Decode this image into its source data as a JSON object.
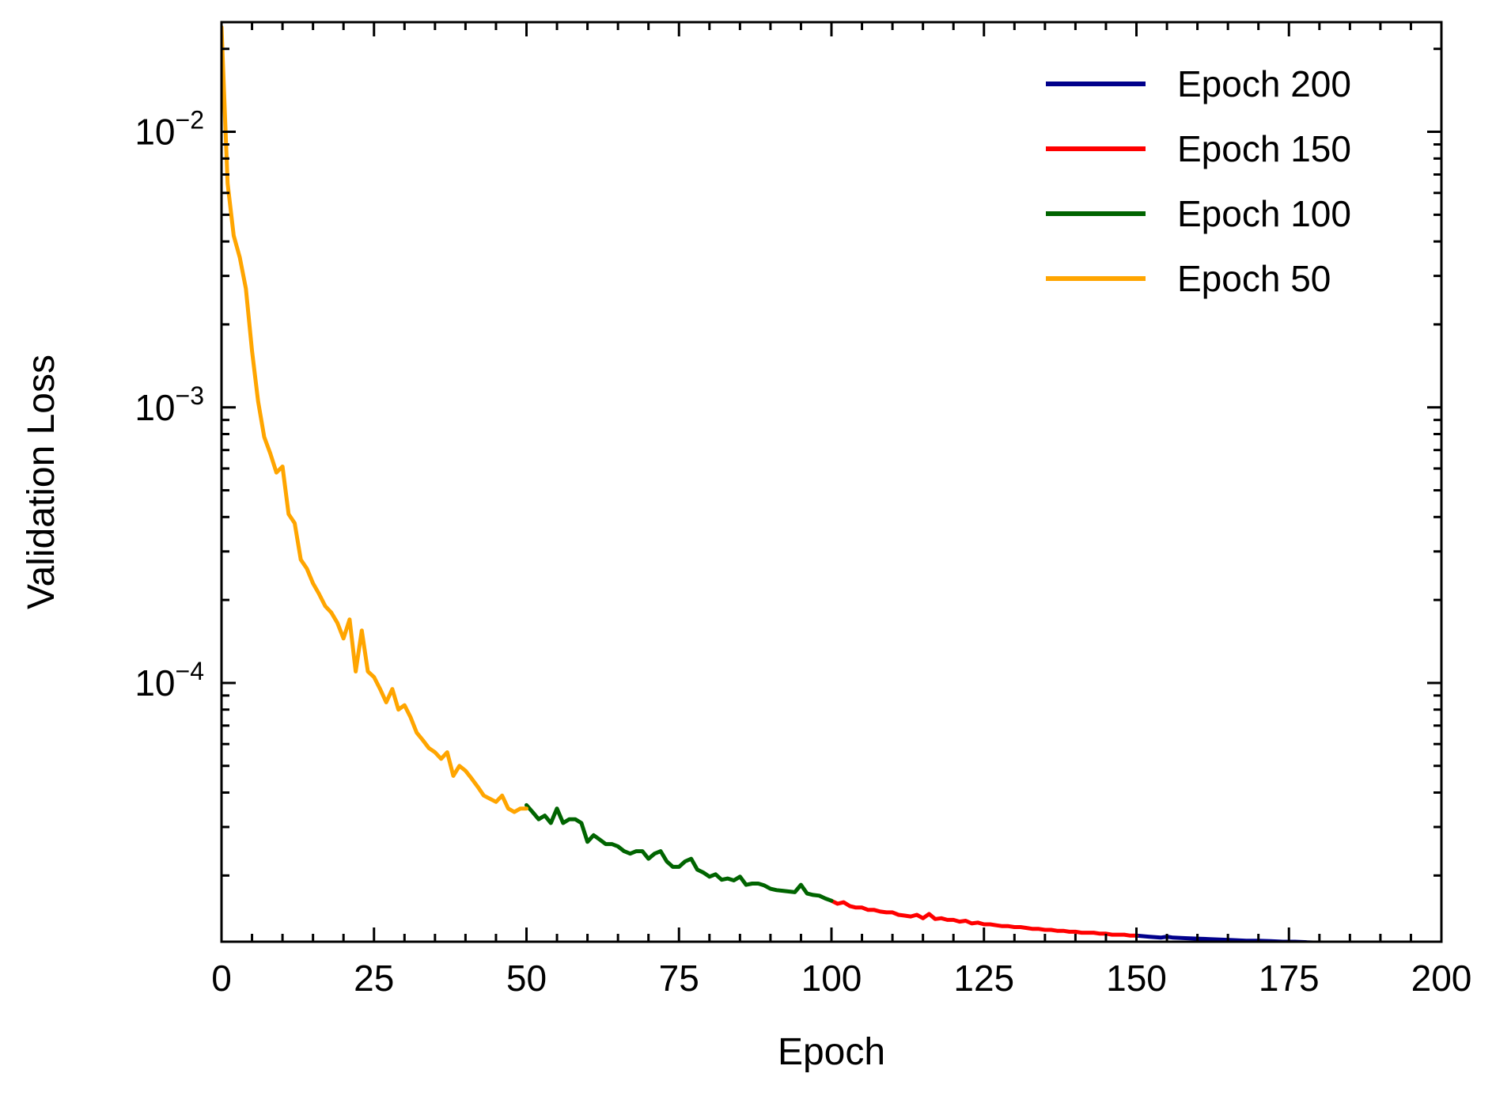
{
  "chart_data": {
    "type": "line",
    "title": "",
    "xlabel": "Epoch",
    "ylabel": "Validation Loss",
    "xlim": [
      0,
      200
    ],
    "ylim": [
      1.15e-05,
      0.025
    ],
    "yscale": "log",
    "grid": false,
    "legend_position": "top-right",
    "x_ticks": [
      0,
      25,
      50,
      75,
      100,
      125,
      150,
      175,
      200
    ],
    "x_tick_labels": [
      "0",
      "25",
      "50",
      "75",
      "100",
      "125",
      "150",
      "175",
      "200"
    ],
    "y_ticks": [
      0.01,
      0.001,
      0.0001
    ],
    "y_tick_labels": [
      {
        "base": "10",
        "exp": "−2"
      },
      {
        "base": "10",
        "exp": "−3"
      },
      {
        "base": "10",
        "exp": "−4"
      }
    ],
    "legend": [
      "Epoch 200",
      "Epoch 150",
      "Epoch 100",
      "Epoch 50"
    ],
    "series": [
      {
        "name": "Epoch 200",
        "color": "#00008b",
        "x": [
          150,
          152,
          154,
          155,
          156,
          158,
          160,
          162,
          164,
          166,
          168,
          170,
          172,
          174,
          176,
          178,
          180,
          182,
          184,
          186,
          188,
          190,
          192,
          194,
          196,
          198,
          200
        ],
        "values": [
          1.21e-05,
          1.2e-05,
          1.19e-05,
          1.2e-05,
          1.19e-05,
          1.185e-05,
          1.18e-05,
          1.175e-05,
          1.17e-05,
          1.165e-05,
          1.16e-05,
          1.16e-05,
          1.155e-05,
          1.15e-05,
          1.15e-05,
          1.145e-05,
          1.14e-05,
          1.14e-05,
          1.135e-05,
          1.13e-05,
          1.13e-05,
          1.125e-05,
          1.12e-05,
          1.12e-05,
          1.118e-05,
          1.115e-05,
          1.11e-05
        ]
      },
      {
        "name": "Epoch 150",
        "color": "#ff0000",
        "x": [
          100,
          101,
          102,
          103,
          104,
          105,
          106,
          107,
          108,
          109,
          110,
          111,
          112,
          113,
          114,
          115,
          116,
          117,
          118,
          119,
          120,
          121,
          122,
          123,
          124,
          125,
          126,
          127,
          128,
          129,
          130,
          131,
          132,
          133,
          134,
          135,
          136,
          137,
          138,
          139,
          140,
          141,
          142,
          143,
          144,
          145,
          146,
          147,
          148,
          149,
          150
        ],
        "values": [
          1.62e-05,
          1.58e-05,
          1.6e-05,
          1.55e-05,
          1.53e-05,
          1.53e-05,
          1.5e-05,
          1.5e-05,
          1.48e-05,
          1.47e-05,
          1.47e-05,
          1.44e-05,
          1.43e-05,
          1.42e-05,
          1.44e-05,
          1.4e-05,
          1.45e-05,
          1.39e-05,
          1.4e-05,
          1.38e-05,
          1.38e-05,
          1.36e-05,
          1.37e-05,
          1.34e-05,
          1.35e-05,
          1.33e-05,
          1.33e-05,
          1.32e-05,
          1.31e-05,
          1.31e-05,
          1.3e-05,
          1.3e-05,
          1.29e-05,
          1.28e-05,
          1.28e-05,
          1.27e-05,
          1.27e-05,
          1.26e-05,
          1.26e-05,
          1.25e-05,
          1.25e-05,
          1.24e-05,
          1.24e-05,
          1.24e-05,
          1.23e-05,
          1.23e-05,
          1.22e-05,
          1.22e-05,
          1.22e-05,
          1.21e-05,
          1.21e-05
        ]
      },
      {
        "name": "Epoch 100",
        "color": "#006400",
        "x": [
          50,
          51,
          52,
          53,
          54,
          55,
          56,
          57,
          58,
          59,
          60,
          61,
          62,
          63,
          64,
          65,
          66,
          67,
          68,
          69,
          70,
          71,
          72,
          73,
          74,
          75,
          76,
          77,
          78,
          79,
          80,
          81,
          82,
          83,
          84,
          85,
          86,
          87,
          88,
          89,
          90,
          91,
          92,
          93,
          94,
          95,
          96,
          97,
          98,
          99,
          100
        ],
        "values": [
          3.6e-05,
          3.4e-05,
          3.2e-05,
          3.3e-05,
          3.1e-05,
          3.5e-05,
          3.1e-05,
          3.2e-05,
          3.2e-05,
          3.1e-05,
          2.65e-05,
          2.8e-05,
          2.7e-05,
          2.6e-05,
          2.6e-05,
          2.55e-05,
          2.45e-05,
          2.4e-05,
          2.45e-05,
          2.45e-05,
          2.3e-05,
          2.4e-05,
          2.45e-05,
          2.25e-05,
          2.15e-05,
          2.15e-05,
          2.25e-05,
          2.3e-05,
          2.1e-05,
          2.05e-05,
          1.98e-05,
          2.02e-05,
          1.93e-05,
          1.95e-05,
          1.92e-05,
          1.98e-05,
          1.85e-05,
          1.87e-05,
          1.87e-05,
          1.84e-05,
          1.79e-05,
          1.77e-05,
          1.76e-05,
          1.75e-05,
          1.74e-05,
          1.85e-05,
          1.72e-05,
          1.7e-05,
          1.69e-05,
          1.65e-05,
          1.62e-05
        ]
      },
      {
        "name": "Epoch 50",
        "color": "#ffa500",
        "x": [
          0,
          1,
          2,
          3,
          4,
          5,
          6,
          7,
          8,
          9,
          10,
          11,
          12,
          13,
          14,
          15,
          16,
          17,
          18,
          19,
          20,
          21,
          22,
          23,
          24,
          25,
          26,
          27,
          28,
          29,
          30,
          31,
          32,
          33,
          34,
          35,
          36,
          37,
          38,
          39,
          40,
          41,
          42,
          43,
          44,
          45,
          46,
          47,
          48,
          49,
          50
        ],
        "values": [
          0.024,
          0.0065,
          0.0042,
          0.0035,
          0.0027,
          0.0016,
          0.00105,
          0.00078,
          0.00068,
          0.00058,
          0.00061,
          0.00041,
          0.00038,
          0.00028,
          0.00026,
          0.00023,
          0.00021,
          0.00019,
          0.00018,
          0.000165,
          0.000145,
          0.00017,
          0.00011,
          0.000155,
          0.00011,
          0.000105,
          9.5e-05,
          8.5e-05,
          9.5e-05,
          8e-05,
          8.3e-05,
          7.5e-05,
          6.6e-05,
          6.2e-05,
          5.8e-05,
          5.6e-05,
          5.3e-05,
          5.6e-05,
          4.6e-05,
          5e-05,
          4.8e-05,
          4.5e-05,
          4.2e-05,
          3.9e-05,
          3.8e-05,
          3.7e-05,
          3.9e-05,
          3.5e-05,
          3.4e-05,
          3.5e-05,
          3.5e-05
        ]
      }
    ]
  }
}
